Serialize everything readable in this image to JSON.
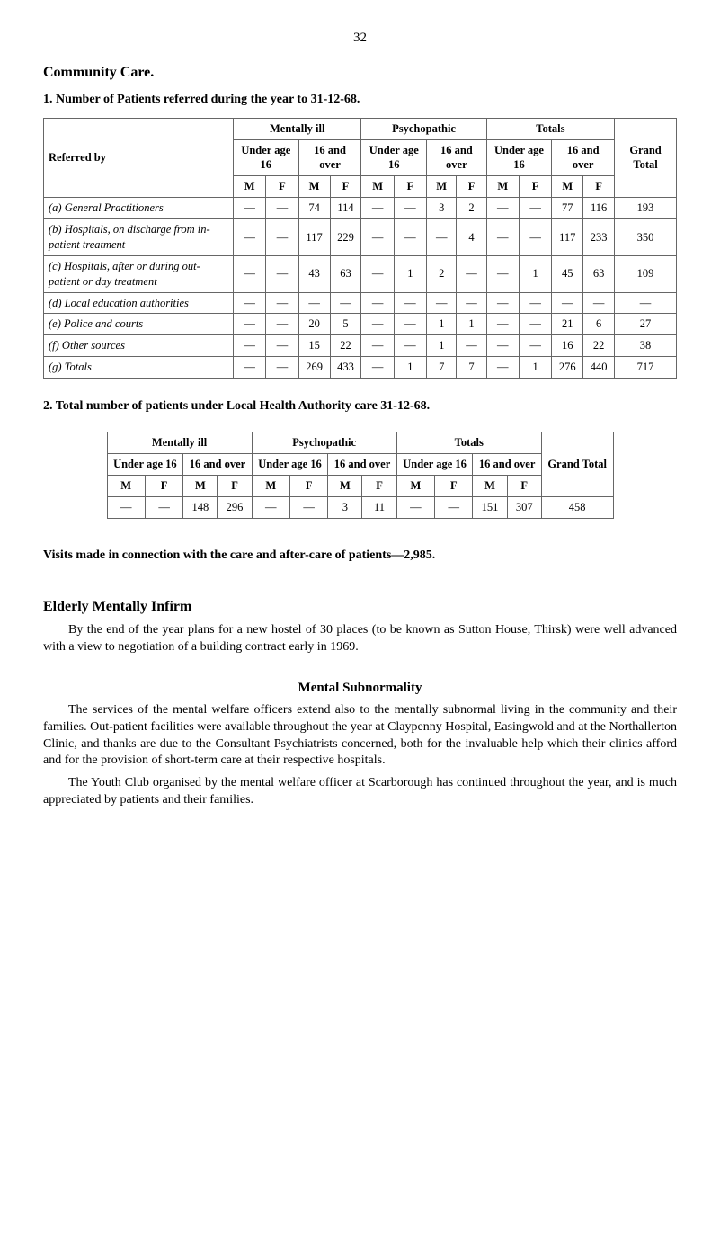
{
  "page_number": "32",
  "section_title": "Community Care.",
  "table1": {
    "title": "1. Number of Patients referred during the year to 31-12-68.",
    "group_headers": [
      "Mentally ill",
      "Psychopathic",
      "Totals"
    ],
    "sub_headers": [
      "Under age 16",
      "16 and over",
      "Under age 16",
      "16 and over",
      "Under age 16",
      "16 and over"
    ],
    "mf_headers": [
      "Referred by",
      "M",
      "F",
      "M",
      "F",
      "M",
      "F",
      "M",
      "F",
      "M",
      "F",
      "M",
      "F"
    ],
    "grand_total_label": "Grand Total",
    "rows": [
      {
        "label": "(a) General Practitioners",
        "cells": [
          "—",
          "—",
          "74",
          "114",
          "—",
          "—",
          "3",
          "2",
          "—",
          "—",
          "77",
          "116",
          "193"
        ]
      },
      {
        "label": "(b) Hospitals, on discharge from in-patient treatment",
        "cells": [
          "—",
          "—",
          "117",
          "229",
          "—",
          "—",
          "—",
          "4",
          "—",
          "—",
          "117",
          "233",
          "350"
        ]
      },
      {
        "label": "(c) Hospitals, after or during out-patient or day treatment",
        "cells": [
          "—",
          "—",
          "43",
          "63",
          "—",
          "1",
          "2",
          "—",
          "—",
          "1",
          "45",
          "63",
          "109"
        ]
      },
      {
        "label": "(d) Local education authorities",
        "cells": [
          "—",
          "—",
          "—",
          "—",
          "—",
          "—",
          "—",
          "—",
          "—",
          "—",
          "—",
          "—",
          "—"
        ]
      },
      {
        "label": "(e) Police and courts",
        "cells": [
          "—",
          "—",
          "20",
          "5",
          "—",
          "—",
          "1",
          "1",
          "—",
          "—",
          "21",
          "6",
          "27"
        ]
      },
      {
        "label": "(f) Other sources",
        "cells": [
          "—",
          "—",
          "15",
          "22",
          "—",
          "—",
          "1",
          "—",
          "—",
          "—",
          "16",
          "22",
          "38"
        ]
      },
      {
        "label": "(g) Totals",
        "cells": [
          "—",
          "—",
          "269",
          "433",
          "—",
          "1",
          "7",
          "7",
          "—",
          "1",
          "276",
          "440",
          "717"
        ]
      }
    ]
  },
  "table2": {
    "title": "2. Total number of patients under Local Health Authority care 31-12-68.",
    "group_headers": [
      "Mentally ill",
      "Psychopathic",
      "Totals"
    ],
    "sub_headers": [
      "Under age 16",
      "16 and over",
      "Under age 16",
      "16 and over",
      "Under age 16",
      "16 and over"
    ],
    "mf_headers": [
      "M",
      "F",
      "M",
      "F",
      "M",
      "F",
      "M",
      "F",
      "M",
      "F",
      "M",
      "F"
    ],
    "grand_total_label": "Grand Total",
    "row": {
      "cells": [
        "—",
        "—",
        "148",
        "296",
        "—",
        "—",
        "3",
        "11",
        "—",
        "—",
        "151",
        "307",
        "458"
      ]
    }
  },
  "visits_line": "Visits made in connection with the care and after-care of patients—2,985.",
  "elderly": {
    "heading": "Elderly Mentally Infirm",
    "para": "By the end of the year plans for a new hostel of 30 places (to be known as Sutton House, Thirsk) were well advanced with a view to negotiation of a building contract early in 1969."
  },
  "subnormality": {
    "heading": "Mental Subnormality",
    "para1": "The services of the mental welfare officers extend also to the mentally subnormal living in the community and their families. Out-patient facilities were available throughout the year at Claypenny Hospital, Easingwold and at the Northallerton Clinic, and thanks are due to the Consultant Psychiatrists concerned, both for the invaluable help which their clinics afford and for the provision of short-term care at their respective hospitals.",
    "para2": "The Youth Club organised by the mental welfare officer at Scarborough has continued throughout the year, and is much appreciated by patients and their families."
  }
}
